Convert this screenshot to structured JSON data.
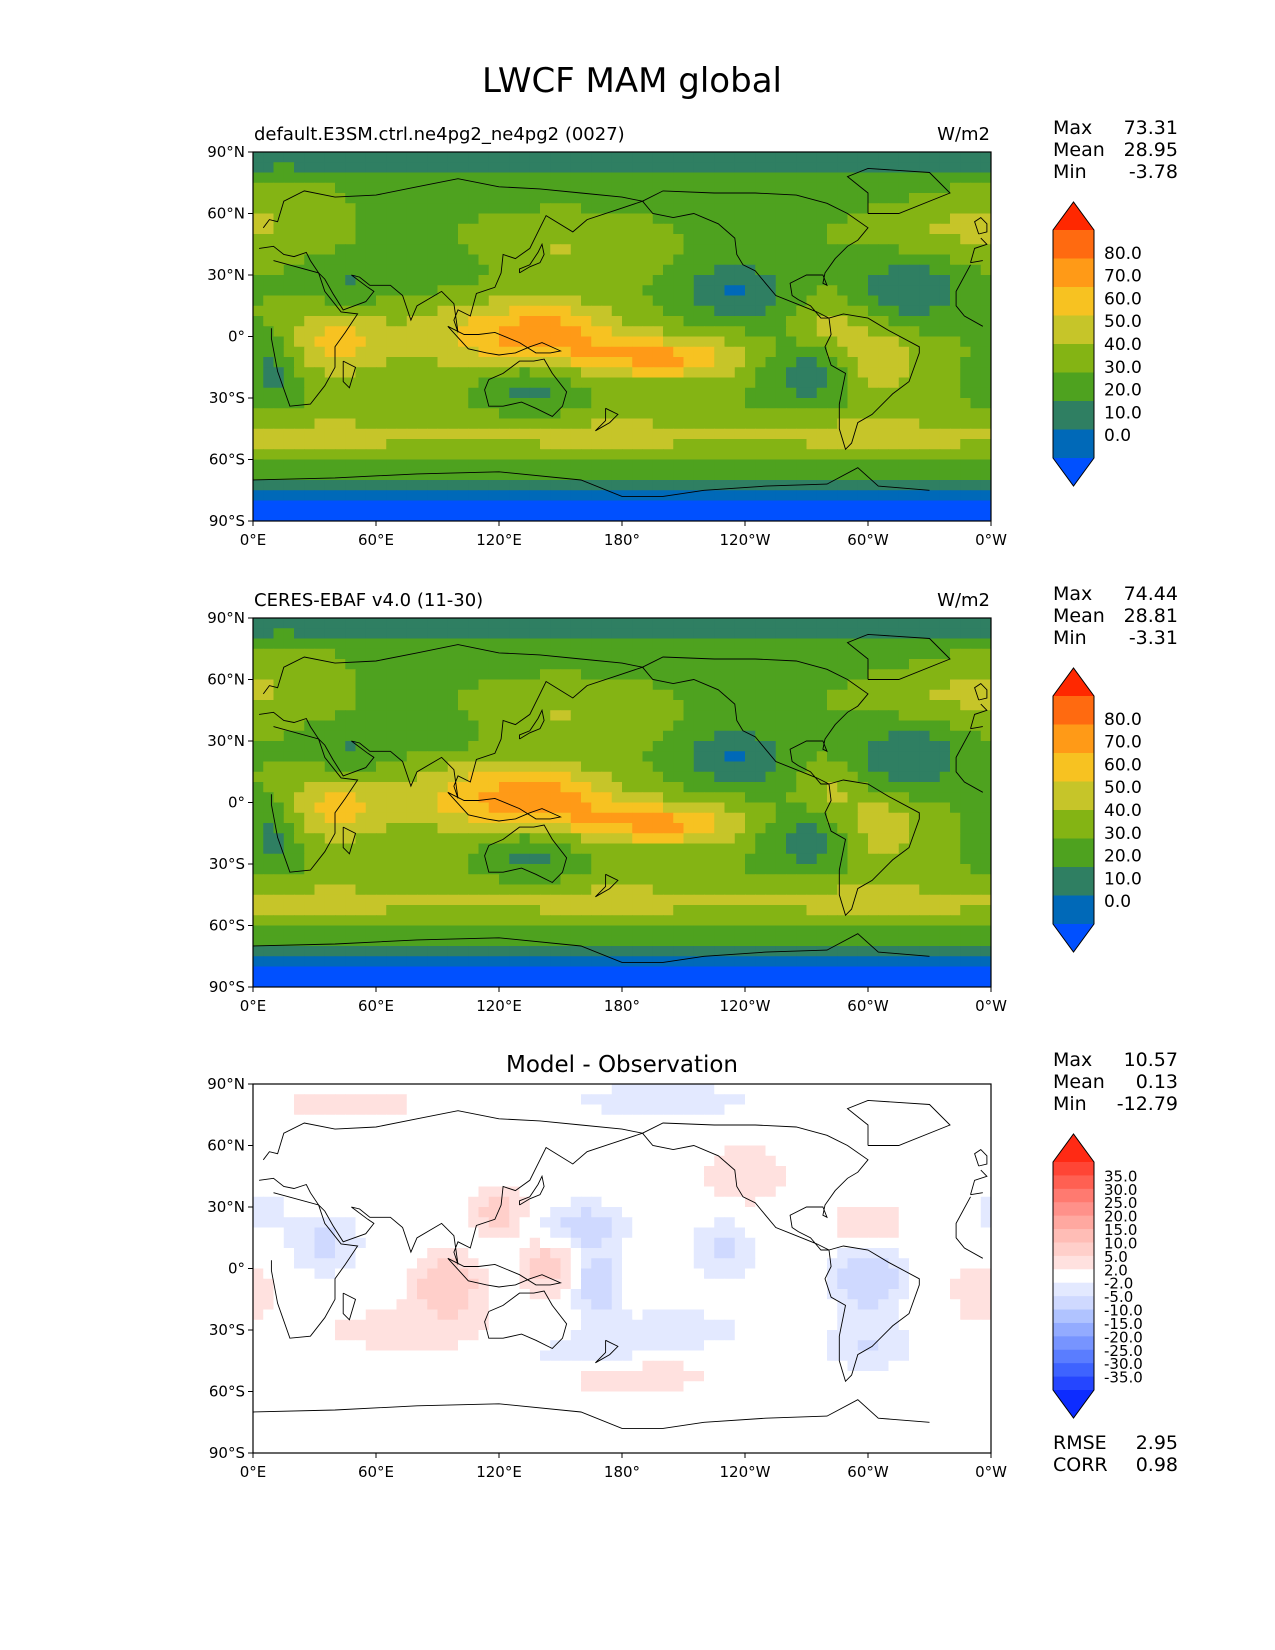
{
  "figure": {
    "title": "LWCF MAM global"
  },
  "colors": {
    "abs_levels": [
      "#0050ff",
      "#0069b8",
      "#2f7f62",
      "#4ea21f",
      "#84b414",
      "#c6c529",
      "#f7c221",
      "#ff9a17",
      "#ff6a10",
      "#ff2800"
    ],
    "diff_levels": [
      "#0d2cff",
      "#2546ff",
      "#3e63ff",
      "#5a7dff",
      "#7794ff",
      "#93abff",
      "#b0c3ff",
      "#cfd9ff",
      "#e3e9ff",
      "#ffffff",
      "#ffe1df",
      "#ffcfca",
      "#ffbdb6",
      "#ffa8a0",
      "#ff918a",
      "#ff7a70",
      "#ff6052",
      "#ff4535",
      "#ff2a14"
    ]
  },
  "chart_data": [
    {
      "type": "heatmap",
      "panel": "test",
      "title": "default.E3SM.ctrl.ne4pg2_ne4pg2 (0027)",
      "units": "W/m2",
      "x_ticks": [
        "0°E",
        "60°E",
        "120°E",
        "180°",
        "120°W",
        "60°W",
        "0°W"
      ],
      "y_ticks": [
        "90°N",
        "60°N",
        "30°N",
        "0°",
        "30°S",
        "60°S",
        "90°S"
      ],
      "xlim": [
        0,
        360
      ],
      "ylim": [
        -90,
        90
      ],
      "stats": {
        "max_label": "Max",
        "max": "73.31",
        "mean_label": "Mean",
        "mean": "28.95",
        "min_label": "Min",
        "min": "-3.78"
      },
      "colorbar_ticks": [
        "80.0",
        "70.0",
        "60.0",
        "50.0",
        "40.0",
        "30.0",
        "20.0",
        "10.0",
        "0.0"
      ],
      "field_id": "model"
    },
    {
      "type": "heatmap",
      "panel": "reference",
      "title": "CERES-EBAF v4.0 (11-30)",
      "units": "W/m2",
      "x_ticks": [
        "0°E",
        "60°E",
        "120°E",
        "180°",
        "120°W",
        "60°W",
        "0°W"
      ],
      "y_ticks": [
        "90°N",
        "60°N",
        "30°N",
        "0°",
        "30°S",
        "60°S",
        "90°S"
      ],
      "xlim": [
        0,
        360
      ],
      "ylim": [
        -90,
        90
      ],
      "stats": {
        "max_label": "Max",
        "max": "74.44",
        "mean_label": "Mean",
        "mean": "28.81",
        "min_label": "Min",
        "min": "-3.31"
      },
      "colorbar_ticks": [
        "80.0",
        "70.0",
        "60.0",
        "50.0",
        "40.0",
        "30.0",
        "20.0",
        "10.0",
        "0.0"
      ],
      "field_id": "obs"
    },
    {
      "type": "heatmap",
      "panel": "difference",
      "title": "Model - Observation",
      "x_ticks": [
        "0°E",
        "60°E",
        "120°E",
        "180°",
        "120°W",
        "60°W",
        "0°W"
      ],
      "y_ticks": [
        "90°N",
        "60°N",
        "30°N",
        "0°",
        "30°S",
        "60°S",
        "90°S"
      ],
      "xlim": [
        0,
        360
      ],
      "ylim": [
        -90,
        90
      ],
      "stats": {
        "max_label": "Max",
        "max": "10.57",
        "mean_label": "Mean",
        "mean": "0.13",
        "min_label": "Min",
        "min": "-12.79"
      },
      "colorbar_ticks": [
        "35.0",
        "30.0",
        "25.0",
        "20.0",
        "15.0",
        "10.0",
        "5.0",
        "2.0",
        "-2.0",
        "-5.0",
        "-10.0",
        "-15.0",
        "-20.0",
        "-25.0",
        "-30.0",
        "-35.0"
      ],
      "metrics": {
        "rmse_label": "RMSE",
        "rmse": "2.95",
        "corr_label": "CORR",
        "corr": "0.98"
      },
      "field_id": "diff"
    }
  ]
}
